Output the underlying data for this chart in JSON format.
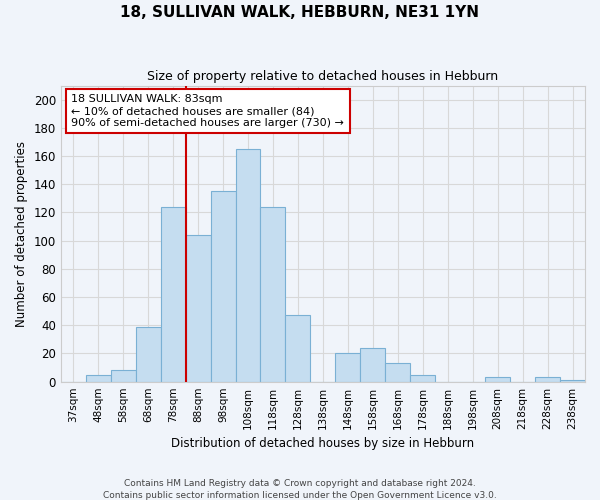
{
  "title": "18, SULLIVAN WALK, HEBBURN, NE31 1YN",
  "subtitle": "Size of property relative to detached houses in Hebburn",
  "xlabel": "Distribution of detached houses by size in Hebburn",
  "ylabel": "Number of detached properties",
  "footnote1": "Contains HM Land Registry data © Crown copyright and database right 2024.",
  "footnote2": "Contains public sector information licensed under the Open Government Licence v3.0.",
  "bar_labels": [
    "37sqm",
    "48sqm",
    "58sqm",
    "68sqm",
    "78sqm",
    "88sqm",
    "98sqm",
    "108sqm",
    "118sqm",
    "128sqm",
    "138sqm",
    "148sqm",
    "158sqm",
    "168sqm",
    "178sqm",
    "188sqm",
    "198sqm",
    "208sqm",
    "218sqm",
    "228sqm",
    "238sqm"
  ],
  "bar_values": [
    0,
    5,
    8,
    39,
    124,
    104,
    135,
    165,
    124,
    47,
    0,
    20,
    24,
    13,
    5,
    0,
    0,
    3,
    0,
    3,
    1
  ],
  "bar_color": "#c5ddf0",
  "bar_edge_color": "#7ab0d4",
  "ylim": [
    0,
    210
  ],
  "yticks": [
    0,
    20,
    40,
    60,
    80,
    100,
    120,
    140,
    160,
    180,
    200
  ],
  "annotation_box_title": "18 SULLIVAN WALK: 83sqm",
  "annotation_line1": "← 10% of detached houses are smaller (84)",
  "annotation_line2": "90% of semi-detached houses are larger (730) →",
  "annotation_box_color": "#ffffff",
  "annotation_box_edge_color": "#cc0000",
  "vline_color": "#cc0000",
  "grid_color": "#d8d8d8",
  "background_color": "#f0f4fa",
  "vline_x_index": 4.5
}
